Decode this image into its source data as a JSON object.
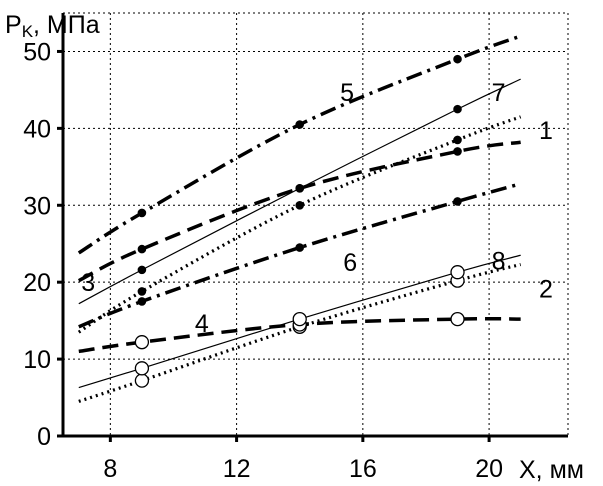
{
  "chart_data": {
    "type": "line",
    "xlabel": "X, мм",
    "ylabel_main": "P",
    "ylabel_sub": "K",
    "ylabel_rest": ", МПа",
    "xlim": [
      6.5,
      22.5
    ],
    "ylim": [
      0,
      55
    ],
    "x_ticks": [
      8,
      12,
      16,
      20
    ],
    "y_ticks": [
      0,
      10,
      20,
      30,
      40,
      50
    ],
    "grid": true,
    "series": [
      {
        "name": "1",
        "style": "dotted",
        "marker": "filled",
        "x": [
          7,
          9,
          14,
          19,
          21
        ],
        "y": [
          13.5,
          18.8,
          30,
          38.5,
          41.5
        ]
      },
      {
        "name": "2",
        "style": "dotted",
        "marker": "open",
        "x": [
          7,
          9,
          14,
          19,
          21
        ],
        "y": [
          4.5,
          7.2,
          14.2,
          20.2,
          22.3
        ]
      },
      {
        "name": "3",
        "style": "dashdot",
        "marker": "filled",
        "x": [
          7,
          9,
          14,
          19,
          21
        ],
        "y": [
          14.2,
          17.5,
          24.5,
          30.5,
          32.8
        ]
      },
      {
        "name": "4",
        "style": "dashed",
        "marker": "open",
        "x": [
          7,
          9,
          14,
          19,
          21
        ],
        "y": [
          11,
          12.2,
          14.5,
          15.2,
          15.2
        ]
      },
      {
        "name": "5",
        "style": "dashdot",
        "marker": "filled",
        "x": [
          7,
          9,
          14,
          19,
          21
        ],
        "y": [
          23.8,
          29,
          40.5,
          49,
          52
        ]
      },
      {
        "name": "6",
        "style": "dashed",
        "marker": "filled",
        "x": [
          7,
          9,
          14,
          19,
          21
        ],
        "y": [
          20.2,
          24.3,
          32.2,
          37,
          38.2
        ]
      },
      {
        "name": "7",
        "style": "solid",
        "marker": "filled",
        "x": [
          7,
          9,
          14,
          19,
          21
        ],
        "y": [
          17.2,
          21.6,
          32.2,
          42.5,
          46.4
        ]
      },
      {
        "name": "8",
        "style": "solid",
        "marker": "open",
        "x": [
          7,
          9,
          14,
          19,
          21
        ],
        "y": [
          6.3,
          8.8,
          15.2,
          21.3,
          23.5
        ]
      }
    ],
    "annotations": [
      {
        "text": "1",
        "x": 21.8,
        "y": 39.8
      },
      {
        "text": "2",
        "x": 21.8,
        "y": 19.2
      },
      {
        "text": "3",
        "x": 7.3,
        "y": 20
      },
      {
        "text": "4",
        "x": 10.9,
        "y": 14.7
      },
      {
        "text": "5",
        "x": 15.5,
        "y": 44.7
      },
      {
        "text": "6",
        "x": 15.6,
        "y": 22.6
      },
      {
        "text": "7",
        "x": 20.3,
        "y": 44.7
      },
      {
        "text": "8",
        "x": 20.3,
        "y": 22.8
      }
    ]
  }
}
